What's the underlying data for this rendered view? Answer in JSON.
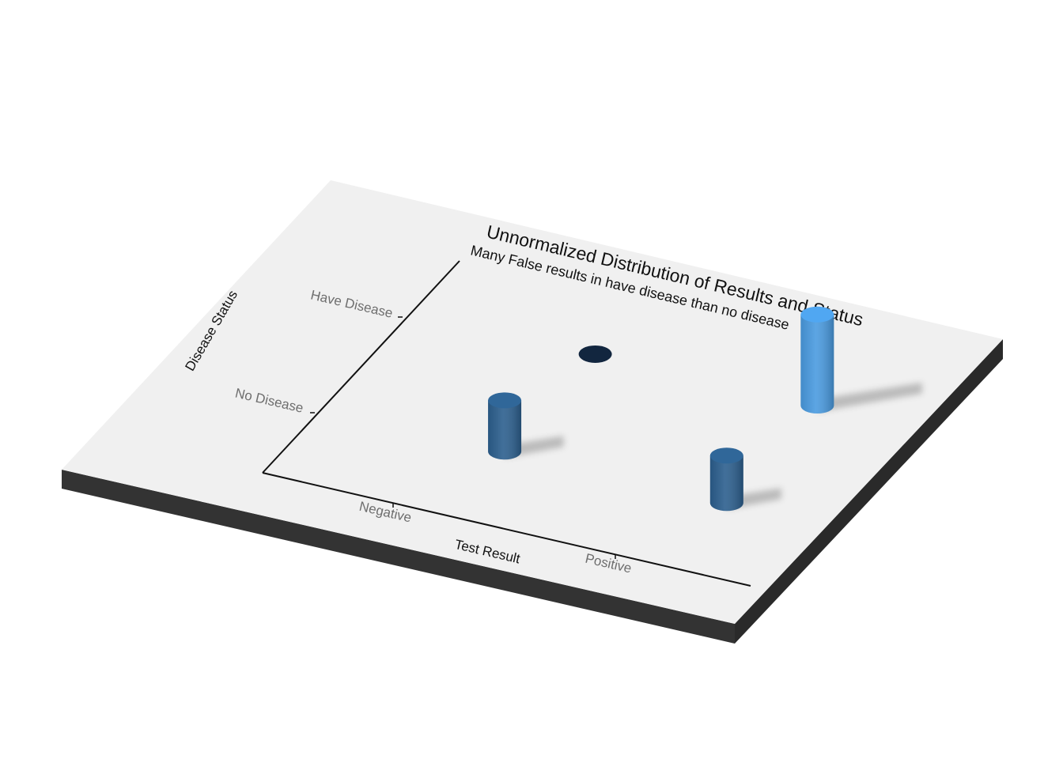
{
  "chart_data": {
    "type": "bar",
    "title": "Unnormalized Distribution of Results and Status",
    "subtitle": "Many False results in have disease than no disease",
    "xlabel": "Test Result",
    "ylabel": "Disease Status",
    "x_categories": [
      "Negative",
      "Positive"
    ],
    "y_categories": [
      "No Disease",
      "Have Disease"
    ],
    "values": [
      {
        "x": "Negative",
        "y": "No Disease",
        "value": 0.27,
        "color": "#2c5f8e"
      },
      {
        "x": "Positive",
        "y": "No Disease",
        "value": 0.25,
        "color": "#2c5f8e"
      },
      {
        "x": "Negative",
        "y": "Have Disease",
        "value": 0.0,
        "color": "#12263f"
      },
      {
        "x": "Positive",
        "y": "Have Disease",
        "value": 0.48,
        "color": "#4a9be0"
      }
    ],
    "grid": false,
    "legend": "none"
  }
}
